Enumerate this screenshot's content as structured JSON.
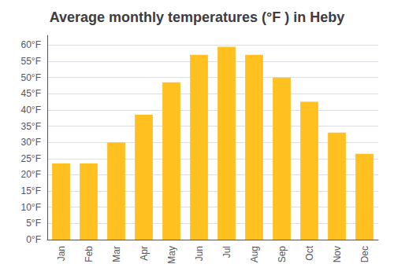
{
  "chart_data": {
    "type": "bar",
    "title": "Average monthly temperatures (°F ) in Heby",
    "categories": [
      "Jan",
      "Feb",
      "Mar",
      "Apr",
      "May",
      "Jun",
      "Jul",
      "Aug",
      "Sep",
      "Oct",
      "Nov",
      "Dec"
    ],
    "values": [
      23.5,
      23.5,
      30.0,
      38.5,
      48.5,
      57.0,
      59.5,
      57.0,
      50.0,
      42.5,
      33.0,
      26.5
    ],
    "color": "#FFC020",
    "ylim": [
      0,
      63
    ],
    "yticks": [
      {
        "value": 0,
        "label": "0°F"
      },
      {
        "value": 5,
        "label": "5°F"
      },
      {
        "value": 10,
        "label": "10°F"
      },
      {
        "value": 15,
        "label": "15°F"
      },
      {
        "value": 20,
        "label": "20°F"
      },
      {
        "value": 25,
        "label": "25°F"
      },
      {
        "value": 30,
        "label": "30°F"
      },
      {
        "value": 35,
        "label": "35°F"
      },
      {
        "value": 40,
        "label": "40°F"
      },
      {
        "value": 45,
        "label": "45°F"
      },
      {
        "value": 50,
        "label": "50°F"
      },
      {
        "value": 55,
        "label": "55°F"
      },
      {
        "value": 60,
        "label": "60°F"
      }
    ],
    "grid": true
  }
}
